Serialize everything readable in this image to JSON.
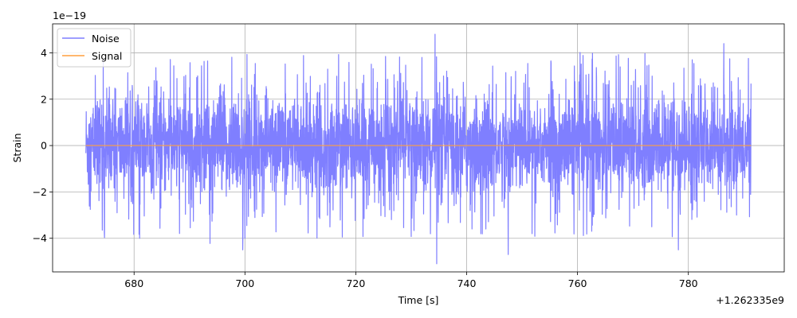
{
  "chart_data": {
    "type": "line",
    "xlabel": "Time [s]",
    "ylabel": "Strain",
    "x_offset_label": "+1.262335e9",
    "y_scale_label": "1e−19",
    "x_range": [
      1262335671.3,
      1262335791.3
    ],
    "xlim": [
      1262335665.3,
      1262335797.3
    ],
    "ylim": [
      -5.45,
      5.25
    ],
    "y_multiplier": 1e-19,
    "x_ticks": [
      {
        "value": 680,
        "label": "680"
      },
      {
        "value": 700,
        "label": "700"
      },
      {
        "value": 720,
        "label": "720"
      },
      {
        "value": 740,
        "label": "740"
      },
      {
        "value": 760,
        "label": "760"
      },
      {
        "value": 780,
        "label": "780"
      }
    ],
    "y_ticks": [
      {
        "value": 4,
        "label": "4"
      },
      {
        "value": 2,
        "label": "2"
      },
      {
        "value": 0,
        "label": "0"
      },
      {
        "value": -2,
        "label": "−2"
      },
      {
        "value": -4,
        "label": "−4"
      }
    ],
    "grid": true,
    "legend_position": "top-left",
    "series": [
      {
        "name": "Noise",
        "color": "#7f7fff",
        "style": "noise",
        "approx_range": [
          -5.1,
          4.8
        ],
        "spikes": [
          {
            "x": 734.3,
            "y": 4.8
          },
          {
            "x": 734.6,
            "y": -5.1
          },
          {
            "x": 699.6,
            "y": -4.5
          },
          {
            "x": 747.5,
            "y": -4.7
          },
          {
            "x": 786.4,
            "y": 4.4
          },
          {
            "x": 778.2,
            "y": -4.5
          },
          {
            "x": 700.0,
            "y": -4.0
          },
          {
            "x": 681.0,
            "y": -4.0
          }
        ]
      },
      {
        "name": "Signal",
        "color": "#ff9f3f",
        "style": "flat",
        "value": 0
      }
    ]
  }
}
